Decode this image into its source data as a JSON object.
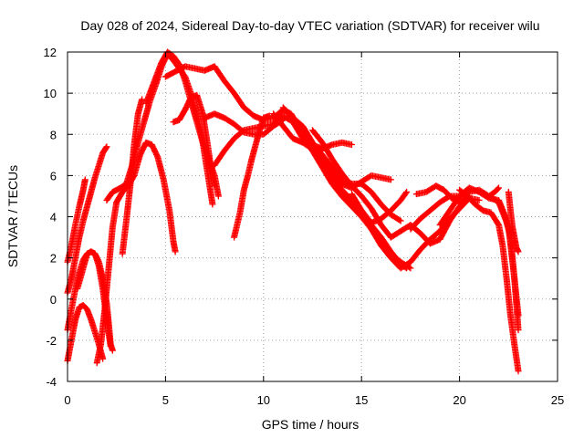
{
  "chart_data": {
    "type": "scatter",
    "title": "Day 028 of 2024, Sidereal Day-to-day VTEC variation (SDTVAR) for receiver wilu",
    "xlabel": "GPS time / hours",
    "ylabel": "SDTVAR / TECUs",
    "xlim": [
      0,
      25
    ],
    "ylim": [
      -4,
      12
    ],
    "xticks": [
      "0",
      "5",
      "10",
      "15",
      "20",
      "25"
    ],
    "yticks": [
      "-4",
      "-2",
      "0",
      "2",
      "4",
      "6",
      "8",
      "10",
      "12"
    ],
    "grid": true,
    "marker": "plus",
    "color": "#ff0000",
    "series": [
      {
        "points": [
          [
            0.0,
            -3.0
          ],
          [
            0.2,
            -2.0
          ],
          [
            0.4,
            -1.0
          ],
          [
            0.6,
            -0.4
          ],
          [
            0.8,
            -0.3
          ],
          [
            1.0,
            -0.5
          ],
          [
            1.2,
            -1.0
          ],
          [
            1.4,
            -1.6
          ],
          [
            1.6,
            -2.2
          ],
          [
            1.8,
            -2.9
          ]
        ]
      },
      {
        "points": [
          [
            0.0,
            -1.5
          ],
          [
            0.2,
            -0.5
          ],
          [
            0.4,
            0.5
          ],
          [
            0.6,
            1.3
          ],
          [
            0.8,
            1.9
          ],
          [
            1.0,
            2.2
          ],
          [
            1.2,
            2.3
          ],
          [
            1.4,
            2.2
          ],
          [
            1.6,
            1.8
          ],
          [
            1.8,
            1.0
          ],
          [
            2.0,
            -0.2
          ],
          [
            2.1,
            -1.2
          ],
          [
            2.2,
            -2.2
          ],
          [
            2.3,
            -2.5
          ]
        ]
      },
      {
        "points": [
          [
            0.0,
            1.8
          ],
          [
            0.2,
            2.6
          ],
          [
            0.4,
            3.6
          ],
          [
            0.6,
            4.5
          ],
          [
            0.8,
            5.3
          ],
          [
            0.9,
            5.8
          ]
        ]
      },
      {
        "points": [
          [
            0.0,
            0.3
          ],
          [
            0.2,
            1.0
          ],
          [
            0.4,
            2.0
          ],
          [
            0.6,
            3.0
          ],
          [
            0.8,
            3.8
          ],
          [
            1.0,
            4.5
          ],
          [
            1.2,
            5.2
          ],
          [
            1.4,
            5.9
          ],
          [
            1.6,
            6.5
          ],
          [
            1.8,
            7.1
          ],
          [
            2.0,
            7.4
          ]
        ]
      },
      {
        "points": [
          [
            0.5,
            0.5
          ],
          [
            0.8,
            1.5
          ],
          [
            1.0,
            2.2
          ],
          [
            1.2,
            2.3
          ],
          [
            1.4,
            2.2
          ],
          [
            1.6,
            1.6
          ],
          [
            1.8,
            0.5
          ],
          [
            2.0,
            -1.0
          ],
          [
            2.2,
            -2.3
          ]
        ]
      },
      {
        "points": [
          [
            1.5,
            -3.1
          ],
          [
            1.7,
            -2.2
          ],
          [
            1.9,
            -0.5
          ],
          [
            2.1,
            1.5
          ],
          [
            2.3,
            3.5
          ],
          [
            2.5,
            4.7
          ],
          [
            2.8,
            5.2
          ],
          [
            3.1,
            5.5
          ],
          [
            3.4,
            6.0
          ],
          [
            3.7,
            7.0
          ],
          [
            4.0,
            7.6
          ],
          [
            4.3,
            7.5
          ],
          [
            4.6,
            6.9
          ],
          [
            4.9,
            5.8
          ],
          [
            5.2,
            4.3
          ],
          [
            5.4,
            2.8
          ],
          [
            5.5,
            2.3
          ]
        ]
      },
      {
        "points": [
          [
            2.8,
            2.2
          ],
          [
            3.0,
            3.8
          ],
          [
            3.2,
            5.5
          ],
          [
            3.4,
            7.5
          ],
          [
            3.6,
            9.0
          ],
          [
            3.8,
            9.7
          ]
        ]
      },
      {
        "points": [
          [
            2.0,
            4.8
          ],
          [
            2.3,
            5.2
          ],
          [
            2.7,
            5.4
          ],
          [
            3.0,
            5.6
          ],
          [
            3.3,
            6.5
          ],
          [
            3.6,
            7.6
          ],
          [
            3.9,
            8.6
          ],
          [
            4.2,
            9.6
          ],
          [
            4.5,
            10.4
          ],
          [
            4.8,
            11.3
          ],
          [
            5.1,
            11.9
          ],
          [
            5.4,
            11.6
          ],
          [
            5.7,
            11.2
          ],
          [
            6.0,
            10.8
          ],
          [
            6.3,
            10.0
          ],
          [
            6.6,
            9.0
          ],
          [
            6.9,
            7.6
          ],
          [
            7.2,
            5.8
          ],
          [
            7.4,
            4.6
          ]
        ]
      },
      {
        "points": [
          [
            4.0,
            9.5
          ],
          [
            4.4,
            10.5
          ],
          [
            4.8,
            11.5
          ],
          [
            5.1,
            12.0
          ],
          [
            5.4,
            11.8
          ],
          [
            5.7,
            11.4
          ],
          [
            6.0,
            10.6
          ],
          [
            6.3,
            9.6
          ],
          [
            6.6,
            8.6
          ],
          [
            6.9,
            7.6
          ],
          [
            7.2,
            6.8
          ],
          [
            7.5,
            6.0
          ],
          [
            7.7,
            5.0
          ]
        ]
      },
      {
        "points": [
          [
            5.4,
            8.6
          ],
          [
            5.7,
            8.7
          ],
          [
            6.0,
            9.2
          ],
          [
            6.3,
            9.8
          ],
          [
            6.6,
            9.9
          ],
          [
            6.9,
            9.0
          ],
          [
            7.1,
            7.8
          ],
          [
            7.3,
            6.5
          ],
          [
            7.5,
            5.5
          ]
        ]
      },
      {
        "points": [
          [
            5.0,
            10.8
          ],
          [
            5.6,
            11.1
          ],
          [
            6.0,
            11.3
          ],
          [
            6.5,
            11.2
          ],
          [
            7.0,
            11.1
          ],
          [
            7.5,
            11.3
          ],
          [
            8.0,
            10.6
          ],
          [
            8.5,
            10.0
          ],
          [
            9.0,
            9.3
          ],
          [
            9.5,
            8.9
          ],
          [
            10.0,
            8.7
          ],
          [
            10.5,
            8.8
          ],
          [
            11.0,
            9.2
          ],
          [
            11.4,
            9.0
          ],
          [
            11.8,
            8.4
          ],
          [
            12.2,
            7.8
          ],
          [
            12.6,
            7.3
          ],
          [
            13.0,
            7.2
          ]
        ]
      },
      {
        "points": [
          [
            7.0,
            8.8
          ],
          [
            7.5,
            9.0
          ],
          [
            8.0,
            8.8
          ],
          [
            8.5,
            8.5
          ],
          [
            9.0,
            8.1
          ],
          [
            9.5,
            8.0
          ],
          [
            10.0,
            8.0
          ],
          [
            10.5,
            8.4
          ],
          [
            11.0,
            8.7
          ]
        ]
      },
      {
        "points": [
          [
            7.5,
            6.5
          ],
          [
            8.0,
            7.2
          ],
          [
            8.5,
            7.8
          ],
          [
            9.0,
            8.2
          ],
          [
            9.5,
            8.3
          ],
          [
            10.0,
            8.4
          ],
          [
            10.5,
            8.5
          ],
          [
            11.0,
            8.9
          ],
          [
            11.5,
            8.6
          ],
          [
            12.0,
            7.8
          ],
          [
            12.5,
            7.2
          ],
          [
            13.0,
            6.4
          ],
          [
            13.5,
            5.6
          ],
          [
            14.0,
            5.0
          ],
          [
            14.5,
            4.5
          ],
          [
            15.0,
            4.0
          ],
          [
            15.5,
            3.4
          ],
          [
            16.0,
            2.8
          ],
          [
            16.5,
            2.2
          ],
          [
            17.0,
            1.8
          ],
          [
            17.5,
            1.5
          ]
        ]
      },
      {
        "points": [
          [
            8.5,
            3.0
          ],
          [
            8.8,
            4.2
          ],
          [
            9.0,
            5.3
          ],
          [
            9.2,
            6.0
          ],
          [
            9.4,
            6.8
          ],
          [
            9.6,
            7.5
          ],
          [
            9.8,
            8.2
          ],
          [
            10.0,
            8.8
          ],
          [
            10.3,
            8.9
          ]
        ]
      },
      {
        "points": [
          [
            10.5,
            9.0
          ],
          [
            11.0,
            8.4
          ],
          [
            11.5,
            7.8
          ],
          [
            12.0,
            7.6
          ],
          [
            12.5,
            7.3
          ],
          [
            13.0,
            6.8
          ],
          [
            13.5,
            6.0
          ],
          [
            14.0,
            5.3
          ],
          [
            14.5,
            4.8
          ],
          [
            15.0,
            4.3
          ],
          [
            15.5,
            3.6
          ],
          [
            16.0,
            3.0
          ],
          [
            16.5,
            2.3
          ],
          [
            17.0,
            1.7
          ],
          [
            17.3,
            1.5
          ]
        ]
      },
      {
        "points": [
          [
            11.0,
            9.3
          ],
          [
            11.5,
            8.8
          ],
          [
            12.0,
            8.4
          ],
          [
            12.5,
            7.6
          ],
          [
            13.0,
            7.0
          ],
          [
            13.5,
            6.4
          ],
          [
            14.0,
            5.8
          ],
          [
            14.5,
            5.6
          ],
          [
            15.0,
            5.6
          ],
          [
            15.5,
            5.2
          ],
          [
            16.0,
            4.6
          ],
          [
            16.5,
            4.1
          ],
          [
            17.0,
            3.8
          ]
        ]
      },
      {
        "points": [
          [
            12.0,
            7.9
          ],
          [
            12.5,
            7.5
          ],
          [
            13.0,
            7.3
          ],
          [
            13.5,
            7.5
          ],
          [
            14.0,
            7.6
          ],
          [
            14.5,
            7.5
          ]
        ]
      },
      {
        "points": [
          [
            12.5,
            8.2
          ],
          [
            13.0,
            7.6
          ],
          [
            13.5,
            6.8
          ],
          [
            14.0,
            6.1
          ],
          [
            14.5,
            5.5
          ],
          [
            15.0,
            5.0
          ],
          [
            15.5,
            4.4
          ],
          [
            16.0,
            3.6
          ],
          [
            16.5,
            3.0
          ],
          [
            17.0,
            3.3
          ],
          [
            17.5,
            3.6
          ],
          [
            18.0,
            3.2
          ],
          [
            18.5,
            2.7
          ],
          [
            19.0,
            2.9
          ],
          [
            19.5,
            3.8
          ],
          [
            20.0,
            4.5
          ],
          [
            20.5,
            5.0
          ]
        ]
      },
      {
        "points": [
          [
            13.5,
            6.1
          ],
          [
            14.0,
            5.6
          ],
          [
            14.5,
            5.4
          ],
          [
            15.0,
            5.7
          ],
          [
            15.5,
            6.0
          ],
          [
            16.0,
            5.9
          ],
          [
            16.5,
            5.8
          ]
        ]
      },
      {
        "points": [
          [
            14.5,
            5.1
          ],
          [
            15.0,
            4.3
          ],
          [
            15.5,
            3.7
          ],
          [
            16.0,
            3.9
          ],
          [
            16.5,
            4.3
          ],
          [
            17.0,
            4.8
          ],
          [
            17.3,
            5.2
          ]
        ]
      },
      {
        "points": [
          [
            15.5,
            3.4
          ],
          [
            16.0,
            2.6
          ],
          [
            16.5,
            2.0
          ],
          [
            17.0,
            1.5
          ],
          [
            17.5,
            1.8
          ],
          [
            18.0,
            2.4
          ],
          [
            18.5,
            2.9
          ],
          [
            19.0,
            3.3
          ],
          [
            19.5,
            3.9
          ],
          [
            20.0,
            4.4
          ],
          [
            20.5,
            4.9
          ],
          [
            21.0,
            4.8
          ]
        ]
      },
      {
        "points": [
          [
            17.5,
            3.4
          ],
          [
            18.0,
            3.9
          ],
          [
            18.5,
            4.3
          ],
          [
            19.0,
            4.7
          ],
          [
            19.5,
            5.0
          ],
          [
            20.0,
            5.0
          ],
          [
            20.5,
            5.2
          ],
          [
            21.0,
            5.3
          ],
          [
            21.5,
            5.0
          ],
          [
            22.0,
            4.7
          ],
          [
            22.5,
            3.5
          ],
          [
            22.8,
            1.0
          ],
          [
            23.0,
            -1.5
          ]
        ]
      },
      {
        "points": [
          [
            17.8,
            5.1
          ],
          [
            18.3,
            5.2
          ],
          [
            18.8,
            5.5
          ],
          [
            19.2,
            5.3
          ],
          [
            19.6,
            4.9
          ],
          [
            20.0,
            4.7
          ],
          [
            20.4,
            4.9
          ]
        ]
      },
      {
        "points": [
          [
            19.0,
            3.6
          ],
          [
            19.5,
            4.3
          ],
          [
            20.0,
            5.0
          ],
          [
            20.5,
            5.4
          ],
          [
            21.0,
            5.2
          ],
          [
            21.5,
            4.9
          ],
          [
            22.0,
            4.8
          ],
          [
            22.3,
            4.1
          ],
          [
            22.6,
            3.0
          ],
          [
            22.8,
            1.0
          ],
          [
            23.0,
            -0.8
          ]
        ]
      },
      {
        "points": [
          [
            20.0,
            5.3
          ],
          [
            20.4,
            5.0
          ],
          [
            20.8,
            4.6
          ],
          [
            21.2,
            4.3
          ],
          [
            21.6,
            4.2
          ],
          [
            22.0,
            3.6
          ],
          [
            22.2,
            2.6
          ],
          [
            22.4,
            1.0
          ],
          [
            22.6,
            -0.8
          ],
          [
            22.8,
            -2.2
          ],
          [
            23.0,
            -3.5
          ]
        ]
      },
      {
        "points": [
          [
            21.5,
            5.0
          ],
          [
            21.8,
            5.2
          ],
          [
            22.0,
            5.4
          ]
        ]
      },
      {
        "points": [
          [
            22.5,
            5.2
          ],
          [
            22.6,
            4.3
          ],
          [
            22.7,
            3.5
          ],
          [
            22.8,
            3.0
          ],
          [
            22.9,
            2.5
          ],
          [
            23.0,
            2.3
          ]
        ]
      }
    ]
  }
}
